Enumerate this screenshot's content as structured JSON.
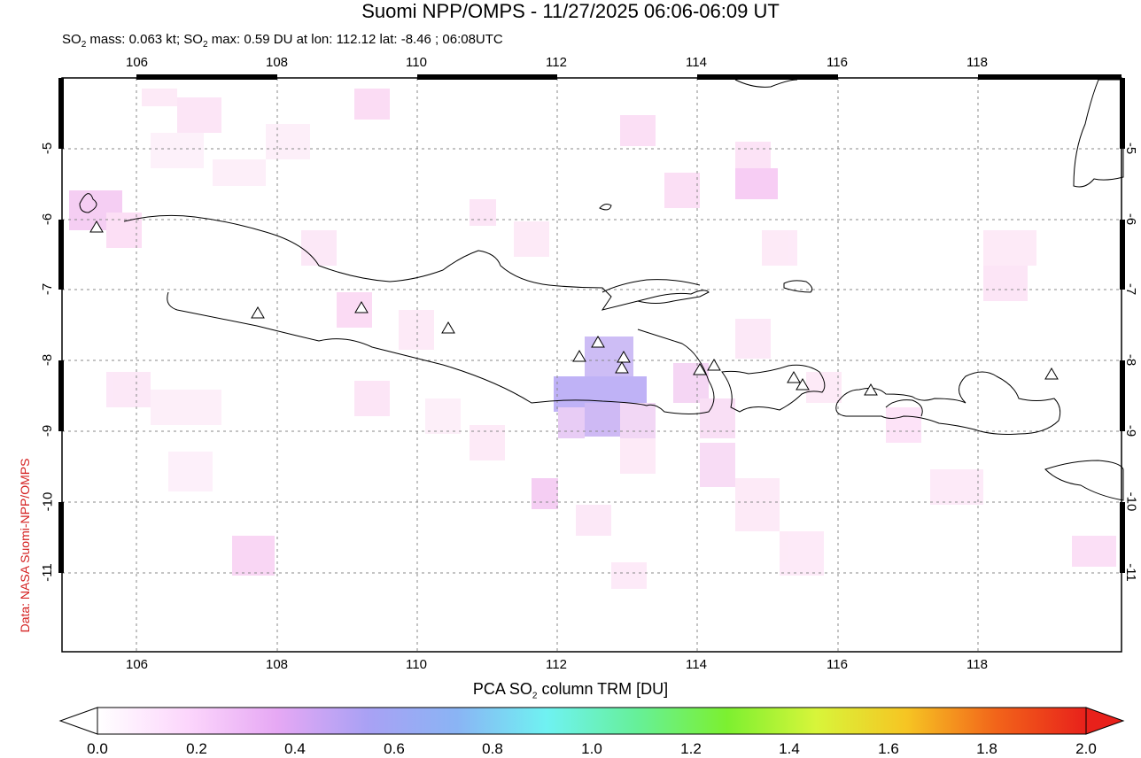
{
  "title": "Suomi NPP/OMPS - 11/27/2025 06:06-06:09 UT",
  "subtitle": {
    "part1": "SO",
    "sub": "2",
    "part2": " mass: 0.063 kt; SO",
    "sub2": "2",
    "part3": " max: 0.59 DU at lon: 112.12 lat: -8.46 ; 06:08UTC"
  },
  "side_credit": "Data: NASA Suomi-NPP/OMPS",
  "map": {
    "lon_ticks": [
      "106",
      "108",
      "110",
      "112",
      "114",
      "116",
      "118"
    ],
    "lat_ticks": [
      "-5",
      "-6",
      "-7",
      "-8",
      "-9",
      "-10",
      "-11"
    ]
  },
  "colorbar": {
    "label_pre": "PCA SO",
    "label_sub": "2",
    "label_post": " column TRM [DU]",
    "ticks": [
      "0.0",
      "0.2",
      "0.4",
      "0.6",
      "0.8",
      "1.0",
      "1.2",
      "1.4",
      "1.6",
      "1.8",
      "2.0"
    ],
    "colors": [
      "#ffffff",
      "#fcd6fc",
      "#e6a8f4",
      "#a9a1f4",
      "#8ab4f4",
      "#6ff2f2",
      "#66f099",
      "#7cf030",
      "#d8f53a",
      "#f6c523",
      "#f2641a",
      "#e8211b"
    ]
  }
}
